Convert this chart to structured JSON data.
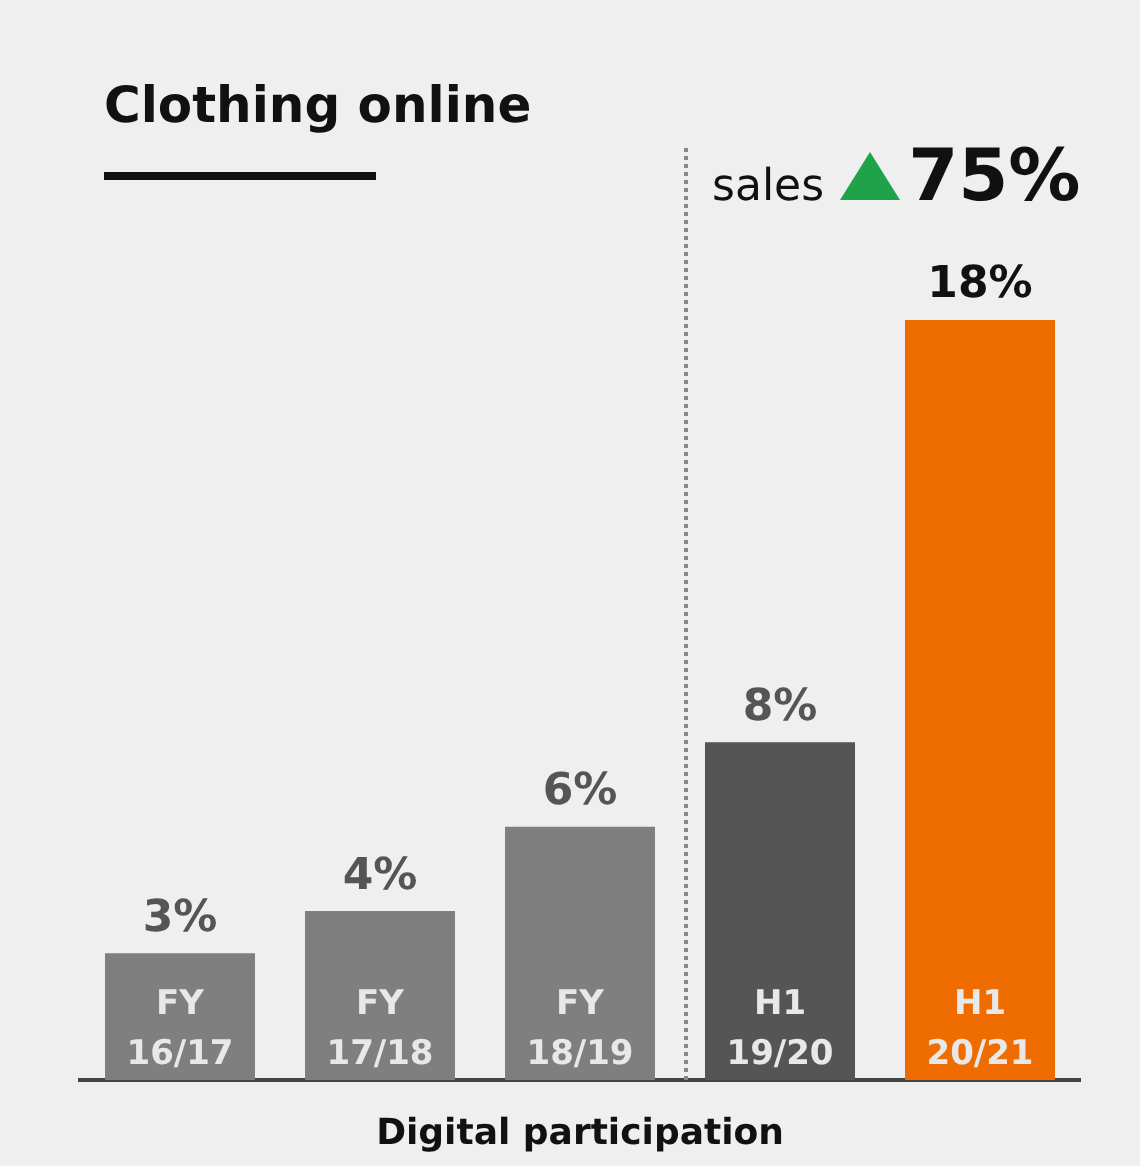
{
  "chart_data": {
    "type": "bar",
    "title": "Clothing online",
    "xlabel": "Digital participation",
    "categories": [
      "FY 16/17",
      "FY 17/18",
      "FY 18/19",
      "H1 19/20",
      "H1 20/21"
    ],
    "values": [
      3,
      4,
      6,
      8,
      18
    ],
    "colors": [
      "#7f7f7f",
      "#7f7f7f",
      "#7f7f7f",
      "#555555",
      "#ef6c00"
    ],
    "value_labels": [
      "3%",
      "4%",
      "6%",
      "8%",
      "18%"
    ],
    "annotations": [
      "sales",
      "75%"
    ],
    "grid": false,
    "legend": false
  }
}
